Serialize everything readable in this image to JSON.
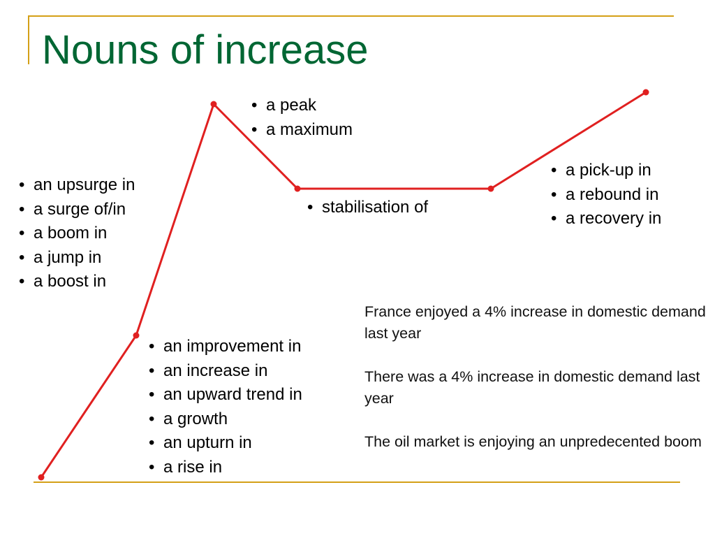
{
  "title": "Nouns of increase",
  "colors": {
    "title": "#006633",
    "line": "#e02020",
    "rule": "#d4a017"
  },
  "graph_points": [
    {
      "name": "start"
    },
    {
      "name": "rise"
    },
    {
      "name": "peak"
    },
    {
      "name": "stable-start"
    },
    {
      "name": "stable-end"
    },
    {
      "name": "recovery"
    }
  ],
  "groups": {
    "upsurge": [
      "an upsurge in",
      "a surge of/in",
      "a boom in",
      "a jump in",
      "a boost in"
    ],
    "peak": [
      "a peak",
      "a maximum"
    ],
    "stabilisation": [
      "stabilisation of"
    ],
    "recovery": [
      "a pick-up in",
      "a rebound in",
      "a recovery in"
    ],
    "improvement": [
      "an improvement in",
      "an increase in",
      "an upward trend in",
      "a growth",
      "an upturn in",
      "a rise in"
    ]
  },
  "examples": [
    "France enjoyed a 4% increase in domestic demand last year",
    "There was a 4% increase in domestic demand last year",
    "The oil market is enjoying an unpredecented boom"
  ]
}
